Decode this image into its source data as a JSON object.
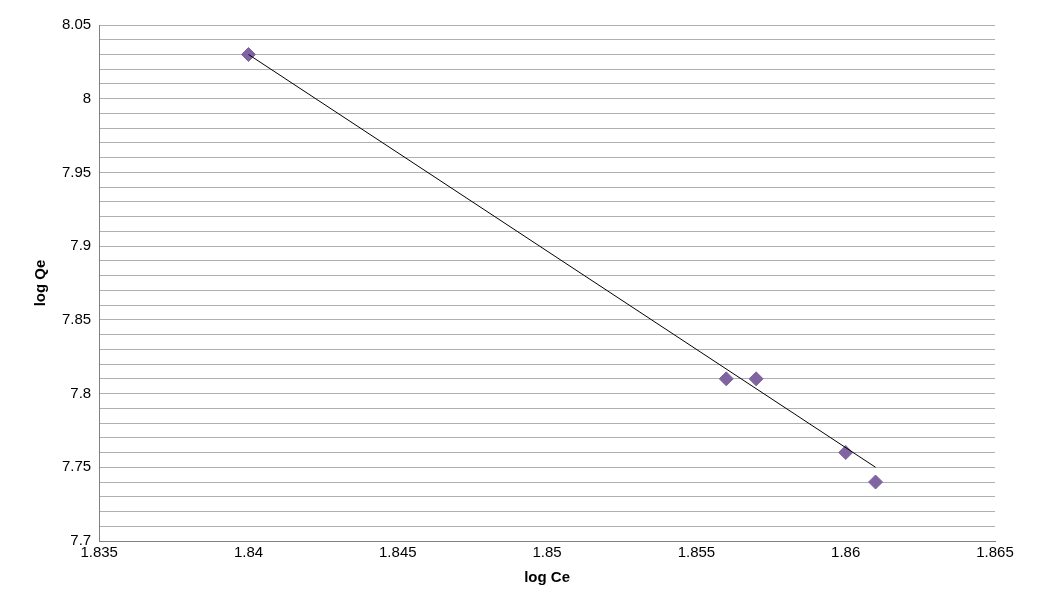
{
  "chart_data": {
    "type": "scatter",
    "xlabel": "log Ce",
    "ylabel": "log Qe",
    "xlim": [
      1.835,
      1.865
    ],
    "xticks": [
      1.835,
      1.84,
      1.845,
      1.85,
      1.855,
      1.86,
      1.865
    ],
    "ylim": [
      7.7,
      8.05
    ],
    "yticks": [
      7.7,
      {
        "value": 7.71,
        "label": null
      },
      {
        "value": 7.72,
        "label": null
      },
      {
        "value": 7.73,
        "label": null
      },
      {
        "value": 7.74,
        "label": null
      },
      7.75,
      {
        "value": 7.76,
        "label": null
      },
      {
        "value": 7.77,
        "label": null
      },
      {
        "value": 7.78,
        "label": null
      },
      {
        "value": 7.79,
        "label": null
      },
      7.8,
      {
        "value": 7.81,
        "label": null
      },
      {
        "value": 7.82,
        "label": null
      },
      {
        "value": 7.83,
        "label": null
      },
      {
        "value": 7.84,
        "label": null
      },
      7.85,
      {
        "value": 7.86,
        "label": null
      },
      {
        "value": 7.87,
        "label": null
      },
      {
        "value": 7.88,
        "label": null
      },
      {
        "value": 7.89,
        "label": null
      },
      7.9,
      {
        "value": 7.91,
        "label": null
      },
      {
        "value": 7.92,
        "label": null
      },
      {
        "value": 7.93,
        "label": null
      },
      {
        "value": 7.94,
        "label": null
      },
      7.95,
      {
        "value": 7.96,
        "label": null
      },
      {
        "value": 7.97,
        "label": null
      },
      {
        "value": 7.98,
        "label": null
      },
      {
        "value": 7.99,
        "label": null
      },
      8,
      {
        "value": 8.01,
        "label": null
      },
      {
        "value": 8.02,
        "label": null
      },
      {
        "value": 8.03,
        "label": null
      },
      {
        "value": 8.04,
        "label": null
      },
      8.05
    ],
    "grid": "y",
    "legend": false,
    "marker": "diamond",
    "series": [
      {
        "color": "#8064a2",
        "x": [
          1.84,
          1.856,
          1.857,
          1.86,
          1.861
        ],
        "values": [
          8.03,
          7.81,
          7.81,
          7.76,
          7.74
        ]
      },
      {
        "type": "line",
        "color": "#000000",
        "marker": "none",
        "x": [
          1.84,
          1.861
        ],
        "values": [
          8.03,
          7.75
        ]
      }
    ]
  }
}
